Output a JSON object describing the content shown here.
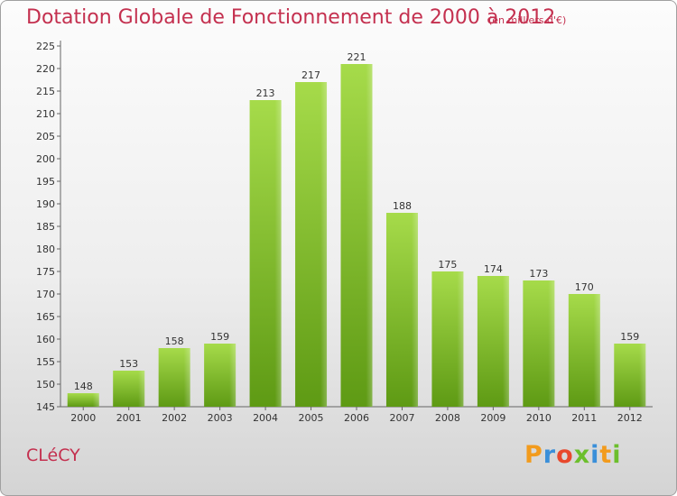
{
  "header": {
    "title": "Dotation Globale de Fonctionnement de 2000 à 2012",
    "subtitle": "(en milliers d'€)"
  },
  "commune": "CLéCY",
  "brand": {
    "letters": [
      "P",
      "r",
      "o",
      "x",
      "i",
      "t",
      "i"
    ],
    "colors": [
      "#f29b1d",
      "#3a8fd9",
      "#e8482c",
      "#6cbf2c",
      "#3a8fd9",
      "#f29b1d",
      "#6cbf2c"
    ]
  },
  "colors": {
    "accent": "#c4304f",
    "bar_light": "#a6db4a",
    "bar_dark": "#5e9a14"
  },
  "chart_data": {
    "type": "bar",
    "title": "Dotation Globale de Fonctionnement de 2000 à 2012",
    "subtitle": "(en milliers d'€)",
    "categories": [
      "2000",
      "2001",
      "2002",
      "2003",
      "2004",
      "2005",
      "2006",
      "2007",
      "2008",
      "2009",
      "2010",
      "2011",
      "2012"
    ],
    "values": [
      148,
      153,
      158,
      159,
      213,
      217,
      221,
      188,
      175,
      174,
      173,
      170,
      159
    ],
    "ylim": [
      145,
      225
    ],
    "yticks": [
      145,
      150,
      155,
      160,
      165,
      170,
      175,
      180,
      185,
      190,
      195,
      200,
      205,
      210,
      215,
      220,
      225
    ],
    "grid": false,
    "xlabel": "",
    "ylabel": ""
  }
}
